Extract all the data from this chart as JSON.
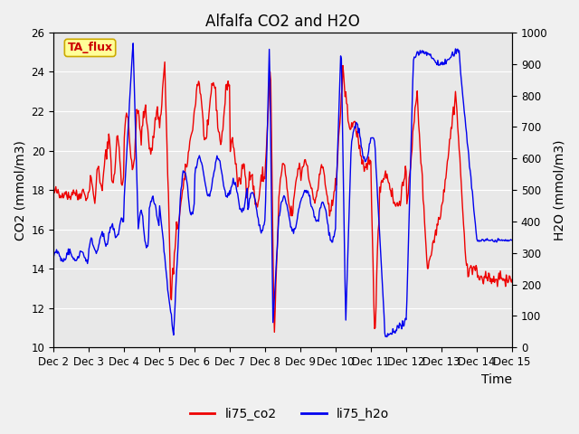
{
  "title": "Alfalfa CO2 and H2O",
  "xlabel": "Time",
  "ylabel_left": "CO2 (mmol/m3)",
  "ylabel_right": "H2O (mmol/m3)",
  "ylim_left": [
    10,
    26
  ],
  "ylim_right": [
    0,
    1000
  ],
  "yticks_left": [
    10,
    12,
    14,
    16,
    18,
    20,
    22,
    24,
    26
  ],
  "yticks_right": [
    0,
    100,
    200,
    300,
    400,
    500,
    600,
    700,
    800,
    900,
    1000
  ],
  "xtick_labels": [
    "Dec 2",
    "Dec 3",
    "Dec 4",
    "Dec 5",
    "Dec 6",
    "Dec 7",
    "Dec 8",
    "Dec 9",
    "Dec 10",
    "Dec 11",
    "Dec 12",
    "Dec 13",
    "Dec 14",
    "Dec 15"
  ],
  "co2_color": "#EE0000",
  "h2o_color": "#0000EE",
  "fig_bg_color": "#F0F0F0",
  "plot_bg_color": "#E8E8E8",
  "grid_color": "#FFFFFF",
  "legend_label_co2": "li75_co2",
  "legend_label_h2o": "li75_h2o",
  "annotation_text": "TA_flux",
  "annotation_color": "#CC0000",
  "annotation_bg": "#FFFF99",
  "annotation_border": "#CCAA00",
  "title_fontsize": 12,
  "axis_fontsize": 10,
  "tick_fontsize": 8.5,
  "legend_fontsize": 10,
  "linewidth": 1.0
}
